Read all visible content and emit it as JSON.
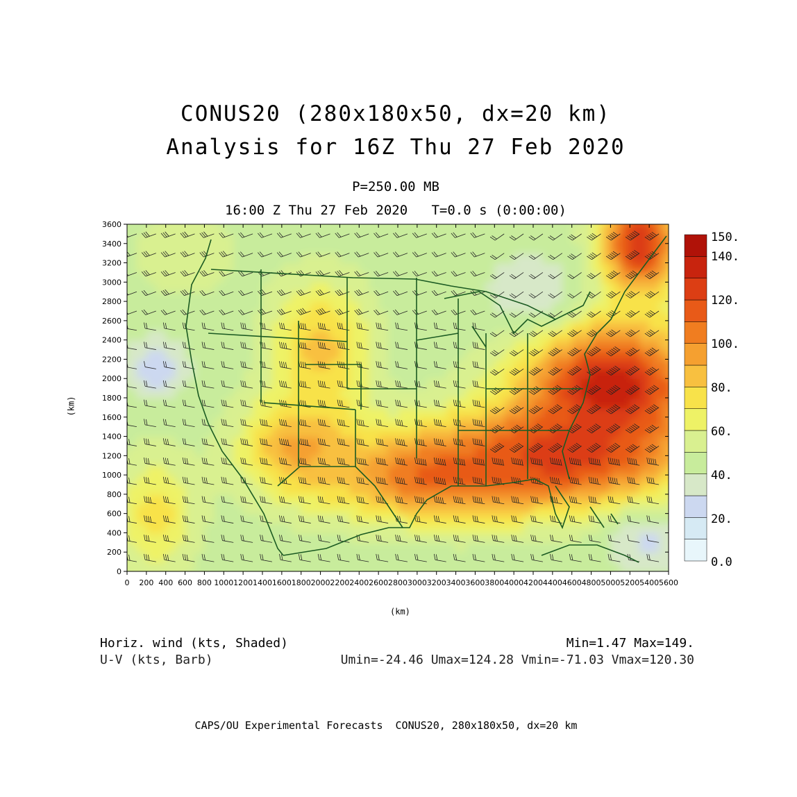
{
  "title": {
    "line1": "CONUS20 (280x180x50, dx=20 km)",
    "line2": "Analysis for 16Z Thu 27 Feb 2020"
  },
  "subtitle": {
    "level": "P=250.00 MB",
    "time": "16:00 Z Thu 27 Feb 2020   T=0.0 s (0:00:00)"
  },
  "axes": {
    "x_unit": "(km)",
    "y_unit": "(km)",
    "x_ticks": [
      0,
      200,
      400,
      600,
      800,
      1000,
      1200,
      1400,
      1600,
      1800,
      2000,
      2200,
      2400,
      2600,
      2800,
      3000,
      3200,
      3400,
      3600,
      3800,
      4000,
      4200,
      4400,
      4600,
      4800,
      5000,
      5200,
      5400,
      5600
    ],
    "y_ticks": [
      0,
      200,
      400,
      600,
      800,
      1000,
      1200,
      1400,
      1600,
      1800,
      2000,
      2200,
      2400,
      2600,
      2800,
      3000,
      3200,
      3400,
      3600
    ],
    "xlim": [
      0,
      5600
    ],
    "ylim": [
      0,
      3600
    ]
  },
  "colorbar": {
    "labels": [
      "150.",
      "140.",
      "120.",
      "100.",
      "80.",
      "60.",
      "40.",
      "20.",
      "0.0"
    ],
    "levels": [
      0,
      10,
      20,
      30,
      40,
      50,
      60,
      70,
      80,
      90,
      100,
      110,
      120,
      130,
      140,
      150
    ],
    "colors": [
      "#e8f6fb",
      "#d6eaf4",
      "#ccd8f0",
      "#d7e8c8",
      "#c8ec9c",
      "#d9f090",
      "#eef266",
      "#f8e24a",
      "#f8c040",
      "#f5a030",
      "#f07d20",
      "#e85a18",
      "#dc3e14",
      "#c8240e",
      "#b01208"
    ]
  },
  "wind_speed_centers": [
    {
      "x": 5000,
      "y": 1900,
      "speed": 149,
      "spread_x": 900,
      "spread_y": 700
    },
    {
      "x": 4400,
      "y": 1200,
      "speed": 135,
      "spread_x": 1200,
      "spread_y": 500
    },
    {
      "x": 3200,
      "y": 1000,
      "speed": 118,
      "spread_x": 1100,
      "spread_y": 450
    },
    {
      "x": 1800,
      "y": 1300,
      "speed": 98,
      "spread_x": 600,
      "spread_y": 500
    },
    {
      "x": 2000,
      "y": 2300,
      "speed": 88,
      "spread_x": 500,
      "spread_y": 700
    },
    {
      "x": 5300,
      "y": 3400,
      "speed": 140,
      "spread_x": 400,
      "spread_y": 500
    },
    {
      "x": 600,
      "y": 3300,
      "speed": 62,
      "spread_x": 500,
      "spread_y": 400
    },
    {
      "x": 300,
      "y": 600,
      "speed": 78,
      "spread_x": 400,
      "spread_y": 600
    },
    {
      "x": 4200,
      "y": 2900,
      "speed": 30,
      "spread_x": 500,
      "spread_y": 400
    },
    {
      "x": 300,
      "y": 2100,
      "speed": 22,
      "spread_x": 300,
      "spread_y": 300
    },
    {
      "x": 5400,
      "y": 300,
      "speed": 25,
      "spread_x": 400,
      "spread_y": 300
    }
  ],
  "footer": {
    "left1": "Horiz. wind (kts, Shaded)",
    "left2": "U-V (kts, Barb)",
    "right1": "Min=1.47 Max=149.",
    "right2": "Umin=-24.46 Umax=124.28 Vmin=-71.03 Vmax=120.30",
    "credit": "CAPS/OU Experimental Forecasts  CONUS20, 280x180x50, dx=20 km"
  }
}
